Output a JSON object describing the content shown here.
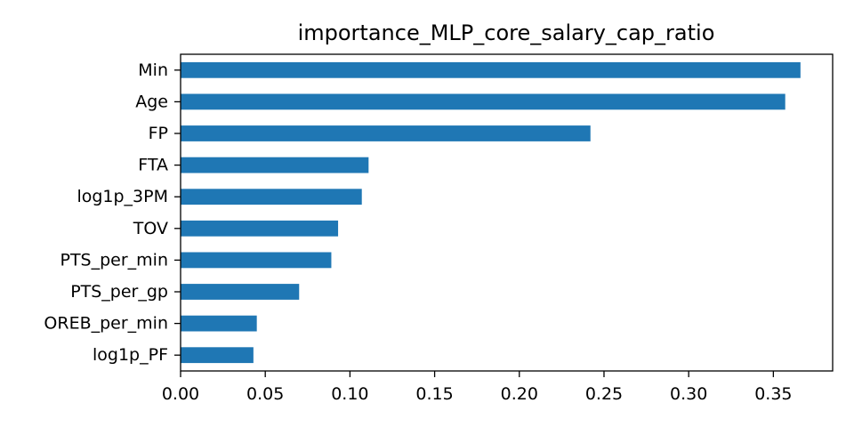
{
  "chart_data": {
    "type": "bar",
    "orientation": "horizontal",
    "title": "importance_MLP_core_salary_cap_ratio",
    "xlabel": "",
    "ylabel": "",
    "categories": [
      "Min",
      "Age",
      "FP",
      "FTA",
      "log1p_3PM",
      "TOV",
      "PTS_per_min",
      "PTS_per_gp",
      "OREB_per_min",
      "log1p_PF"
    ],
    "values": [
      0.366,
      0.357,
      0.242,
      0.111,
      0.107,
      0.093,
      0.089,
      0.07,
      0.045,
      0.043
    ],
    "xlim": [
      0,
      0.385
    ],
    "xticks": [
      0.0,
      0.05,
      0.1,
      0.15,
      0.2,
      0.25,
      0.3,
      0.35
    ],
    "xtick_labels": [
      "0.00",
      "0.05",
      "0.10",
      "0.15",
      "0.20",
      "0.25",
      "0.30",
      "0.35"
    ],
    "grid": false,
    "legend": "none",
    "bar_color": "#1f77b4"
  }
}
